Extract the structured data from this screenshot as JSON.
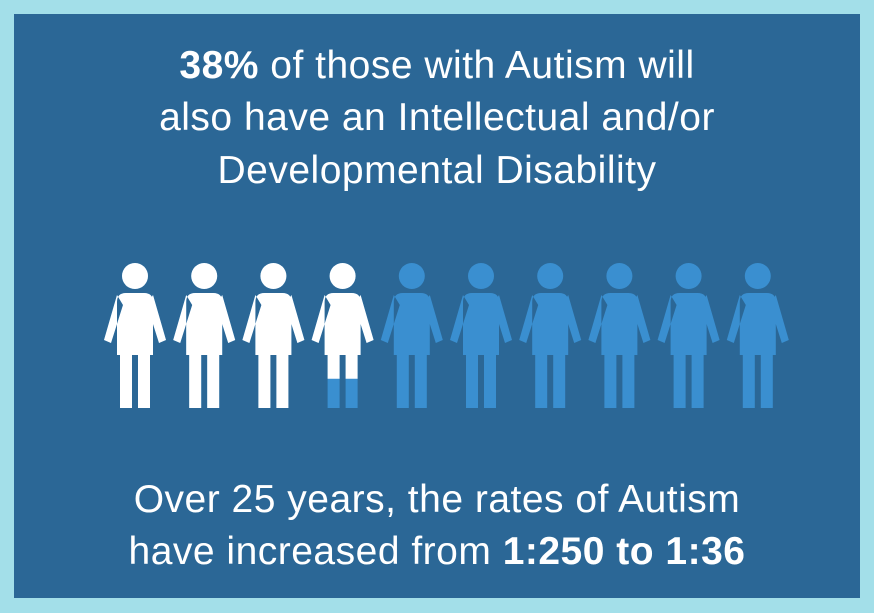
{
  "headline": {
    "highlight": {
      "value": 38,
      "label": "38%"
    },
    "lines": [
      "of those with Autism will",
      "also have an Intellectual and/or",
      "Developmental Disability"
    ]
  },
  "footer": {
    "lines": [
      "Over 25 years, the rates of Autism",
      "have increased from"
    ],
    "highlight": "1:250 to 1:36"
  }
}
